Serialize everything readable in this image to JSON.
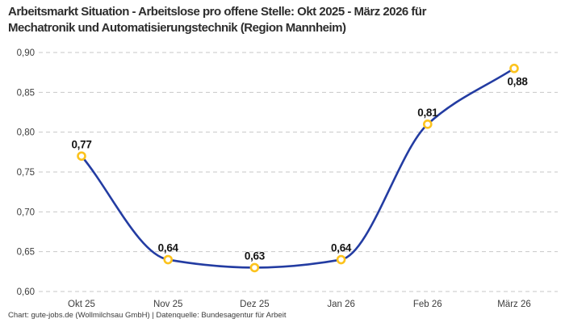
{
  "header": {
    "title_line1": "Arbeitsmarkt Situation - Arbeitslose pro offene Stelle: Okt 2025 - März 2026 für",
    "title_line2": "Mechatronik und Automatisierungstechnik (Region Mannheim)"
  },
  "footer": {
    "text": "Chart: gute-jobs.de (Wollmilchsau GmbH) | Datenquelle: Bundesagentur für Arbeit"
  },
  "chart_data": {
    "type": "line",
    "title": "Arbeitsmarkt Situation - Arbeitslose pro offene Stelle: Okt 2025 - März 2026 für Mechatronik und Automatisierungstechnik (Region Mannheim)",
    "categories": [
      "Okt 25",
      "Nov 25",
      "Dez 25",
      "Jan 26",
      "Feb 26",
      "März 26"
    ],
    "values": [
      0.77,
      0.64,
      0.63,
      0.64,
      0.81,
      0.88
    ],
    "value_labels": [
      "0,77",
      "0,64",
      "0,63",
      "0,64",
      "0,81",
      "0,88"
    ],
    "label_positions": [
      "above",
      "above",
      "above",
      "above",
      "above",
      "below-right"
    ],
    "y_tick_values": [
      0.9,
      0.85,
      0.8,
      0.75,
      0.7,
      0.65,
      0.6
    ],
    "y_tick_labels": [
      "0,90",
      "0,85",
      "0,80",
      "0,75",
      "0,70",
      "0,65",
      "0,60"
    ],
    "ylim": [
      0.6,
      0.9
    ],
    "xlabel": "",
    "ylabel": "",
    "grid": "horizontal-dashed",
    "legend": "none",
    "curve": "smooth-monotone",
    "colors": {
      "line": "#233ca2",
      "marker_ring": "#fcc31d",
      "marker_fill": "#ffffff",
      "grid": "#c7c7c7",
      "axis_text": "#3d3d3d",
      "value_label_text": "#141414",
      "title_text": "#2d2d2d",
      "background": "#ffffff"
    }
  }
}
